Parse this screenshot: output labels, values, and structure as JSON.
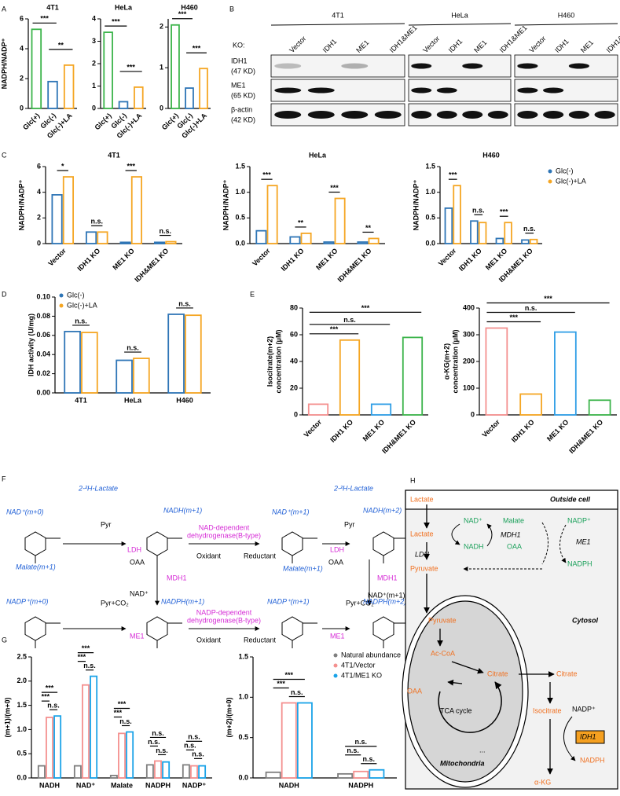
{
  "panels": [
    "A",
    "B",
    "C",
    "D",
    "E",
    "F",
    "G",
    "H"
  ],
  "chart_data": [
    {
      "type": "bar",
      "title": "4T1",
      "y_label": "NADPH/NADP⁺",
      "categories": [
        "Glc(+)",
        "Glc(-)",
        "Glc(-)+LA"
      ],
      "values": [
        5.3,
        1.8,
        2.9
      ],
      "colors": [
        "#3cb44b",
        "#2e75b6",
        "#f5a623"
      ],
      "ylim": [
        0,
        6
      ],
      "yticks": [
        0,
        2,
        4,
        6
      ],
      "comparisons": [
        {
          "pair": [
            "Glc(+)",
            "Glc(-)"
          ],
          "label": "***"
        },
        {
          "pair": [
            "Glc(-)",
            "Glc(-)+LA"
          ],
          "label": "**"
        }
      ]
    },
    {
      "type": "bar",
      "title": "HeLa",
      "categories": [
        "Glc(+)",
        "Glc(-)",
        "Glc(-)+LA"
      ],
      "values": [
        3.4,
        0.3,
        0.95
      ],
      "colors": [
        "#3cb44b",
        "#2e75b6",
        "#f5a623"
      ],
      "ylim": [
        0,
        4
      ],
      "yticks": [
        0,
        1,
        2,
        3,
        4
      ],
      "comparisons": [
        {
          "pair": [
            "Glc(+)",
            "Glc(-)"
          ],
          "label": "***"
        },
        {
          "pair": [
            "Glc(-)",
            "Glc(-)+LA"
          ],
          "label": "***"
        }
      ]
    },
    {
      "type": "bar",
      "title": "H460",
      "categories": [
        "Glc(+)",
        "Glc(-)",
        "Glc(-)+LA"
      ],
      "values": [
        2.05,
        0.5,
        0.98
      ],
      "colors": [
        "#3cb44b",
        "#2e75b6",
        "#f5a623"
      ],
      "ylim": [
        0,
        2.2
      ],
      "yticks": [
        0,
        1,
        2
      ],
      "comparisons": [
        {
          "pair": [
            "Glc(+)",
            "Glc(-)"
          ],
          "label": "***"
        },
        {
          "pair": [
            "Glc(-)",
            "Glc(-)+LA"
          ],
          "label": "***"
        }
      ]
    },
    {
      "type": "bar",
      "title": "4T1",
      "y_label": "NADPH/NADP⁺",
      "categories": [
        "Vector",
        "IDH1 KO",
        "ME1 KO",
        "IDH&ME1 KO"
      ],
      "series": [
        {
          "name": "Glc(-)",
          "color": "#2e75b6",
          "values": [
            3.8,
            0.9,
            0.1,
            0.1
          ]
        },
        {
          "name": "Glc(-)+LA",
          "color": "#f5a623",
          "values": [
            5.2,
            0.9,
            5.2,
            0.15
          ]
        }
      ],
      "ylim": [
        0,
        6
      ],
      "yticks": [
        0,
        2,
        4,
        6
      ],
      "significance": [
        "*",
        "n.s.",
        "***",
        "n.s."
      ]
    },
    {
      "type": "bar",
      "title": "HeLa",
      "y_label": "NADPH/NADP⁺",
      "categories": [
        "Vector",
        "IDH1 KO",
        "ME1 KO",
        "IDH&ME1 KO"
      ],
      "series": [
        {
          "name": "Glc(-)",
          "color": "#2e75b6",
          "values": [
            0.25,
            0.13,
            0.03,
            0.03
          ]
        },
        {
          "name": "Glc(-)+LA",
          "color": "#f5a623",
          "values": [
            1.13,
            0.2,
            0.88,
            0.1
          ]
        }
      ],
      "ylim": [
        0,
        1.5
      ],
      "yticks": [
        {
          "value": 0,
          "label": "0.0"
        },
        0.5,
        {
          "value": 1,
          "label": "1.0"
        },
        1.5
      ],
      "significance": [
        "***",
        "**",
        "***",
        "**"
      ]
    },
    {
      "type": "bar",
      "title": "H460",
      "y_label": "NADPH/NADP⁺",
      "categories": [
        "Vector",
        "IDH1 KO",
        "ME1 KO",
        "IDH&ME1 KO"
      ],
      "series": [
        {
          "name": "Glc(-)",
          "color": "#2e75b6",
          "values": [
            0.69,
            0.44,
            0.1,
            0.07
          ]
        },
        {
          "name": "Glc(-)+LA",
          "color": "#f5a623",
          "values": [
            1.13,
            0.41,
            0.41,
            0.08
          ]
        }
      ],
      "ylim": [
        0,
        1.5
      ],
      "yticks": [
        {
          "value": 0,
          "label": "0.0"
        },
        0.5,
        {
          "value": 1,
          "label": "1.0"
        },
        1.5
      ],
      "significance": [
        "***",
        "n.s.",
        "***",
        "n.s."
      ],
      "legend": "right"
    },
    {
      "type": "bar",
      "y_label": "IDH activity (U/mg)",
      "categories": [
        "4T1",
        "HeLa",
        "H460"
      ],
      "series": [
        {
          "name": "Glc(-)",
          "color": "#2e75b6",
          "values": [
            0.064,
            0.034,
            0.082
          ]
        },
        {
          "name": "Glc(-)+LA",
          "color": "#f5a623",
          "values": [
            0.063,
            0.036,
            0.081
          ]
        }
      ],
      "ylim": [
        0,
        0.1
      ],
      "yticks": [
        {
          "value": 0,
          "label": "0.00"
        },
        0.02,
        0.04,
        0.06,
        0.08,
        {
          "value": 0.1,
          "label": "0.10"
        }
      ],
      "significance": [
        "n.s.",
        "n.s.",
        "n.s."
      ],
      "legend": "upper left"
    },
    {
      "type": "bar",
      "y_label": [
        "Isocitrate(m+2)",
        "concentration (μM)"
      ],
      "categories": [
        "Vector",
        "IDH1 KO",
        "ME1 KO",
        "IDH&ME1 KO"
      ],
      "values": [
        8,
        56,
        8,
        58
      ],
      "colors": [
        "#f4908f",
        "#f5a623",
        "#2f9ee6",
        "#3cb44b"
      ],
      "ylim": [
        0,
        80
      ],
      "yticks": [
        0,
        20,
        40,
        60,
        80
      ],
      "comparisons": [
        {
          "pair": [
            "Vector",
            "IDH1 KO"
          ],
          "label": "***"
        },
        {
          "pair": [
            "Vector",
            "ME1 KO"
          ],
          "label": "n.s."
        },
        {
          "pair": [
            "Vector",
            "IDH&ME1 KO"
          ],
          "label": "***"
        }
      ]
    },
    {
      "type": "bar",
      "y_label": [
        "α-KG(m+2)",
        "concentration (μM)"
      ],
      "categories": [
        "Vector",
        "IDH1 KO",
        "ME1 KO",
        "IDH&ME1 KO"
      ],
      "values": [
        325,
        78,
        310,
        55
      ],
      "colors": [
        "#f4908f",
        "#f5a623",
        "#2f9ee6",
        "#3cb44b"
      ],
      "ylim": [
        0,
        400
      ],
      "yticks": [
        0,
        100,
        200,
        300,
        400
      ],
      "comparisons": [
        {
          "pair": [
            "Vector",
            "IDH1 KO"
          ],
          "label": "***"
        },
        {
          "pair": [
            "Vector",
            "ME1 KO"
          ],
          "label": "n.s."
        },
        {
          "pair": [
            "Vector",
            "IDH&ME1 KO"
          ],
          "label": "***"
        }
      ]
    },
    {
      "type": "bar",
      "y_label": "(m+1)/(m+0)",
      "categories": [
        "NADH",
        "NAD⁺",
        "Malate",
        "NADPH",
        "NADP⁺"
      ],
      "series": [
        {
          "name": "Natural abundance",
          "color": "#7f7f7f",
          "values": [
            0.25,
            0.25,
            0.05,
            0.27,
            0.27
          ]
        },
        {
          "name": "4T1/Vector",
          "color": "#f4908f",
          "values": [
            1.25,
            1.92,
            0.92,
            0.35,
            0.25
          ]
        },
        {
          "name": "4T1/ME1 KO",
          "color": "#1aa3e8",
          "values": [
            1.28,
            2.1,
            0.95,
            0.33,
            0.25
          ]
        }
      ],
      "ylim": [
        0,
        2.5
      ],
      "yticks": [
        {
          "value": 0,
          "label": "0.0"
        },
        0.5,
        {
          "value": 1,
          "label": "1.0"
        },
        1.5,
        {
          "value": 2,
          "label": "2.0"
        },
        2.5
      ],
      "significance": [
        [
          "***",
          "***",
          "n.s."
        ],
        [
          "***",
          "***",
          "n.s."
        ],
        [
          "***",
          "***",
          "n.s."
        ],
        [
          "n.s.",
          "n.s.",
          "n.s."
        ],
        [
          "n.s.",
          "n.s.",
          "n.s."
        ]
      ]
    },
    {
      "type": "bar",
      "y_label": "(m+2)/(m+0)",
      "categories": [
        "NADH",
        "NADPH"
      ],
      "series": [
        {
          "name": "Natural abundance",
          "color": "#7f7f7f",
          "values": [
            0.07,
            0.05
          ]
        },
        {
          "name": "4T1/Vector",
          "color": "#f4908f",
          "values": [
            0.93,
            0.08
          ]
        },
        {
          "name": "4T1/ME1 KO",
          "color": "#1aa3e8",
          "values": [
            0.93,
            0.1
          ]
        }
      ],
      "ylim": [
        0,
        1.5
      ],
      "yticks": [
        {
          "value": 0,
          "label": "0.0"
        },
        0.5,
        {
          "value": 1,
          "label": "1.0"
        },
        1.5
      ],
      "significance": [
        [
          "***",
          "***",
          "n.s."
        ],
        [
          "n.s.",
          "n.s.",
          "n.s."
        ]
      ],
      "legend": "upper right"
    }
  ],
  "blot": {
    "cell_lines": [
      "4T1",
      "HeLa",
      "H460"
    ],
    "ko_label": "KO:",
    "lanes": [
      "Vector",
      "IDH1",
      "ME1",
      "IDH1&ME1"
    ],
    "rows": [
      {
        "name": "IDH1",
        "size": "(47 KD)"
      },
      {
        "name": "ME1",
        "size": "(65 KD)"
      },
      {
        "name": "β-actin",
        "size": "(42 KD)"
      }
    ]
  },
  "scheme": {
    "labels": [
      "2-²H-Lactate",
      "NAD⁺(m+0)",
      "Pyr",
      "NADH(m+1)",
      "LDH",
      "NAD-dependent",
      "dehydrogenase(B-type)",
      "Oxidant",
      "Reductant",
      "NAD⁺(m+1)",
      "2-²H-Lactate",
      "Pyr",
      "NADH(m+2)",
      "LDH",
      "Malate(m+1)",
      "OAA",
      "MDH1",
      "NAD⁺",
      "Malate(m+1)",
      "OAA",
      "MDH1",
      "NAD⁺(m+1)",
      "NADP⁺(m+0)",
      "Pyr+CO₂",
      "NADPH(m+1)",
      "ME1",
      "NADP-dependent",
      "dehydrogenase(B-type)",
      "Oxidant",
      "Reductant",
      "NADP⁺(m+1)",
      "Pyr+CO₂",
      "NADPH(m+2)",
      "ME1"
    ]
  },
  "pathway": {
    "labels": [
      "Lactate",
      "Outside cell",
      "Lactate",
      "NAD⁺",
      "NADH",
      "LDH",
      "Malate",
      "MDH1",
      "OAA",
      "NADP⁺",
      "ME1",
      "NADPH",
      "Pyruvate",
      "Cytosol",
      "Pyruvate",
      "Ac-CoA",
      "Citrate",
      "OAA",
      "TCA cycle",
      "Mitochondria",
      "Citrate",
      "Isocitrate",
      "NADP⁺",
      "IDH1",
      "NADPH",
      "α-KG",
      "..."
    ]
  }
}
